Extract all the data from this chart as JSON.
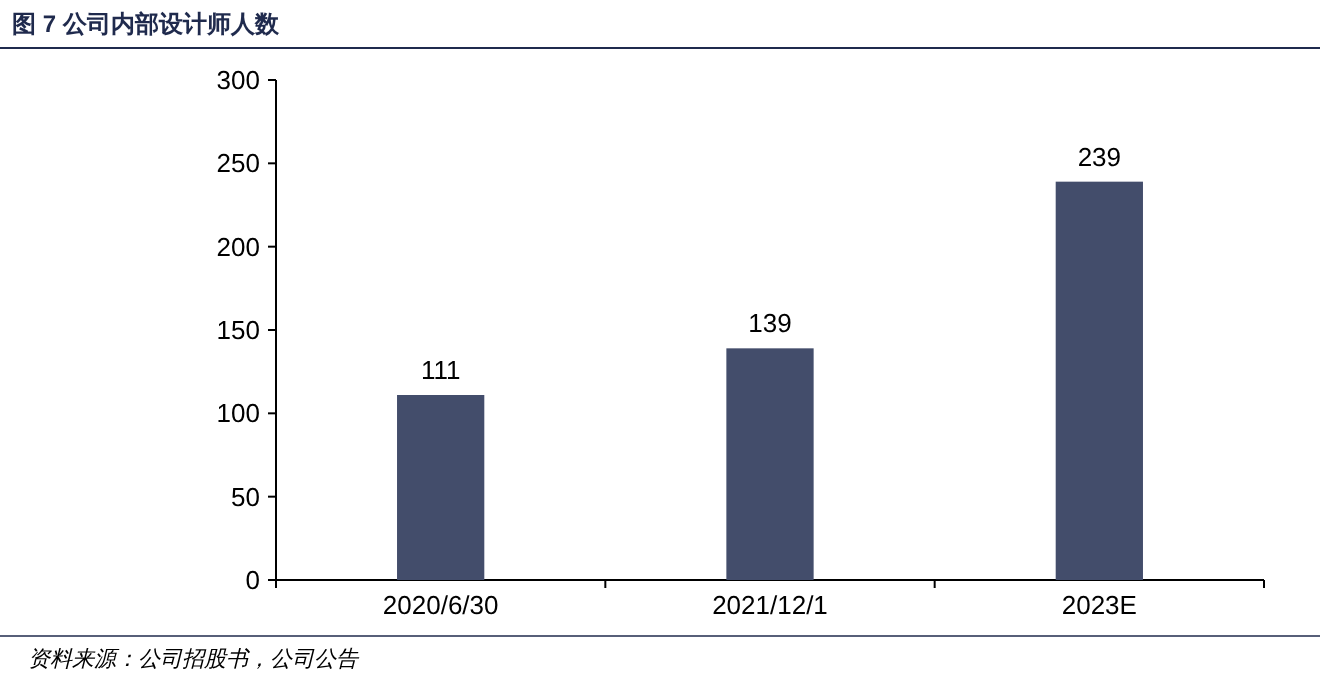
{
  "chart_data": {
    "type": "bar",
    "title": "图 7  公司内部设计师人数",
    "categories": [
      "2020/6/30",
      "2021/12/1",
      "2023E"
    ],
    "values": [
      111,
      139,
      239
    ],
    "color": "#434d6b",
    "ylim": [
      0,
      300
    ],
    "yticks": [
      0,
      50,
      100,
      150,
      200,
      250,
      300
    ],
    "data_labels": true,
    "annotations": [
      "资料来源：公司招股书，公司公告"
    ]
  }
}
